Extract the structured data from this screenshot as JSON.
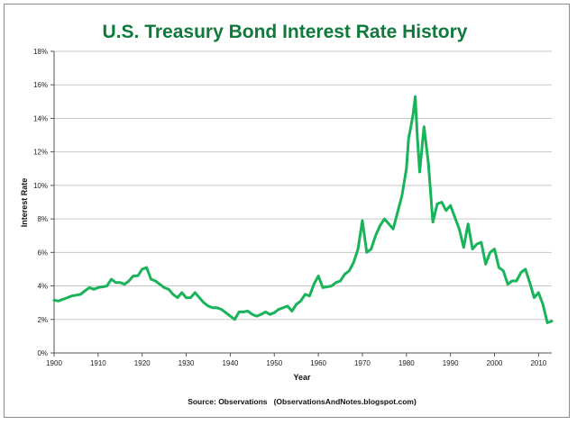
{
  "chart_data": {
    "type": "line",
    "title": "U.S. Treasury Bond Interest Rate History",
    "xlabel": "Year",
    "ylabel": "Interest Rate",
    "source": "Source: Observations   (ObservationsAndNotes.blogspot.com)",
    "xlim": [
      1900,
      2013
    ],
    "ylim": [
      0,
      18
    ],
    "x_ticks": [
      1900,
      1910,
      1920,
      1930,
      1940,
      1950,
      1960,
      1970,
      1980,
      1990,
      2000,
      2010
    ],
    "y_ticks": [
      0,
      2,
      4,
      6,
      8,
      10,
      12,
      14,
      16,
      18
    ],
    "y_tick_labels": [
      "0%",
      "2%",
      "4%",
      "6%",
      "8%",
      "10%",
      "12%",
      "14%",
      "16%",
      "18%"
    ],
    "grid": "horizontal",
    "legend": "none",
    "line_color": "#19b35a",
    "series": [
      {
        "x": [
          1900,
          1901,
          1902,
          1903,
          1904,
          1905,
          1906,
          1907,
          1908,
          1909,
          1910,
          1911,
          1912,
          1913,
          1914,
          1915,
          1916,
          1917,
          1918,
          1919,
          1920,
          1921,
          1922,
          1923,
          1924,
          1925,
          1926,
          1927,
          1928,
          1929,
          1930,
          1931,
          1932,
          1933,
          1934,
          1935,
          1936,
          1937,
          1938,
          1939,
          1940,
          1941,
          1942,
          1943,
          1944,
          1945,
          1946,
          1947,
          1948,
          1949,
          1950,
          1951,
          1952,
          1953,
          1954,
          1955,
          1956,
          1957,
          1958,
          1959,
          1960,
          1961,
          1962,
          1963,
          1964,
          1965,
          1966,
          1967,
          1968,
          1969,
          1970,
          1971,
          1972,
          1973,
          1974,
          1975,
          1976,
          1977,
          1978,
          1979,
          1980,
          1980.5,
          1981,
          1981.5,
          1982,
          1982.5,
          1983,
          1984,
          1985,
          1986,
          1987,
          1988,
          1989,
          1990,
          1991,
          1992,
          1993,
          1994,
          1995,
          1996,
          1997,
          1998,
          1999,
          2000,
          2001,
          2002,
          2003,
          2004,
          2005,
          2006,
          2007,
          2008,
          2009,
          2010,
          2011,
          2012,
          2013
        ],
        "values": [
          3.15,
          3.1,
          3.2,
          3.3,
          3.4,
          3.45,
          3.5,
          3.7,
          3.9,
          3.8,
          3.9,
          3.95,
          4.0,
          4.4,
          4.2,
          4.2,
          4.1,
          4.3,
          4.6,
          4.6,
          5.0,
          5.1,
          4.4,
          4.3,
          4.1,
          3.9,
          3.8,
          3.5,
          3.3,
          3.6,
          3.3,
          3.3,
          3.6,
          3.3,
          3.0,
          2.8,
          2.7,
          2.7,
          2.6,
          2.4,
          2.2,
          2.0,
          2.45,
          2.45,
          2.5,
          2.3,
          2.2,
          2.3,
          2.45,
          2.3,
          2.4,
          2.6,
          2.7,
          2.8,
          2.5,
          2.9,
          3.1,
          3.5,
          3.4,
          4.1,
          4.6,
          3.9,
          3.95,
          4.0,
          4.2,
          4.3,
          4.7,
          4.9,
          5.4,
          6.2,
          7.9,
          6.0,
          6.2,
          7.0,
          7.6,
          8.0,
          7.7,
          7.4,
          8.4,
          9.4,
          11.0,
          12.8,
          13.5,
          14.2,
          15.3,
          12.8,
          10.8,
          13.5,
          11.3,
          7.8,
          8.9,
          9.0,
          8.5,
          8.8,
          8.1,
          7.4,
          6.3,
          7.7,
          6.2,
          6.5,
          6.6,
          5.3,
          6.0,
          6.2,
          5.1,
          4.9,
          4.1,
          4.3,
          4.3,
          4.8,
          5.0,
          4.2,
          3.3,
          3.6,
          2.9,
          1.8,
          1.9
        ]
      }
    ]
  }
}
